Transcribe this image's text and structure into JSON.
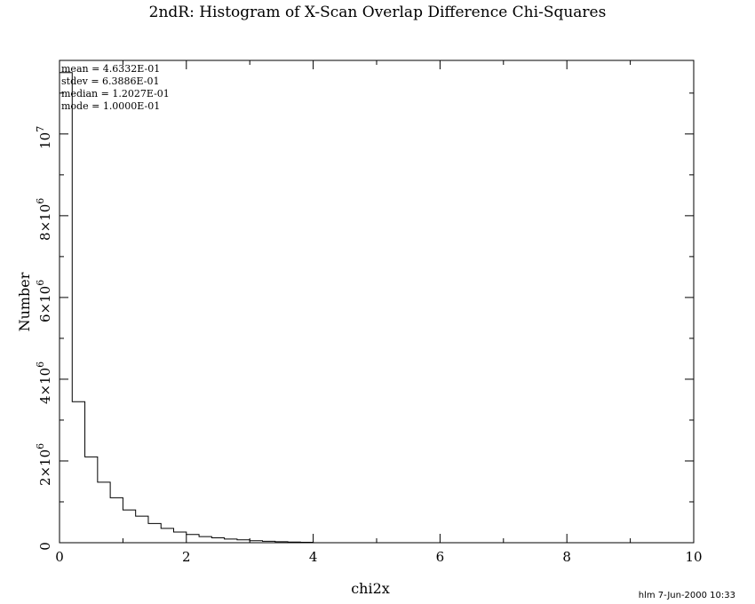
{
  "chart_data": {
    "type": "histogram",
    "title": "2ndR: Histogram of X-Scan Overlap Difference Chi-Squares",
    "xlabel": "chi2x",
    "ylabel": "Number",
    "xlim": [
      0,
      10
    ],
    "ylim": [
      0,
      11800000
    ],
    "bin_width": 0.2,
    "x_ticks": [
      0,
      2,
      4,
      6,
      8,
      10
    ],
    "x_tick_labels": [
      "0",
      "2",
      "4",
      "6",
      "8",
      "10"
    ],
    "y_ticks": [
      0,
      2000000,
      4000000,
      6000000,
      8000000,
      10000000
    ],
    "y_tick_labels": [
      {
        "mantissa": "0",
        "exponent": ""
      },
      {
        "mantissa": "2×10",
        "exponent": "6"
      },
      {
        "mantissa": "4×10",
        "exponent": "6"
      },
      {
        "mantissa": "6×10",
        "exponent": "6"
      },
      {
        "mantissa": "8×10",
        "exponent": "6"
      },
      {
        "mantissa": "10",
        "exponent": "7"
      }
    ],
    "bins": [
      0,
      0.2,
      0.4,
      0.6,
      0.8,
      1.0,
      1.2,
      1.4,
      1.6,
      1.8,
      2.0,
      2.2,
      2.4,
      2.6,
      2.8,
      3.0,
      3.2,
      3.4,
      3.6,
      3.8
    ],
    "counts": [
      11500000,
      3450000,
      2100000,
      1480000,
      1100000,
      800000,
      650000,
      470000,
      350000,
      260000,
      200000,
      150000,
      120000,
      90000,
      70000,
      50000,
      35000,
      25000,
      15000,
      10000
    ],
    "stats": [
      {
        "label": "mean =",
        "value": "4.6332E-01"
      },
      {
        "label": "stdev =",
        "value": "6.3886E-01"
      },
      {
        "label": "median =",
        "value": "1.2027E-01"
      },
      {
        "label": "mode =",
        "value": "1.0000E-01"
      }
    ],
    "grid": false
  },
  "footer": "hlm  7-Jun-2000 10:33"
}
